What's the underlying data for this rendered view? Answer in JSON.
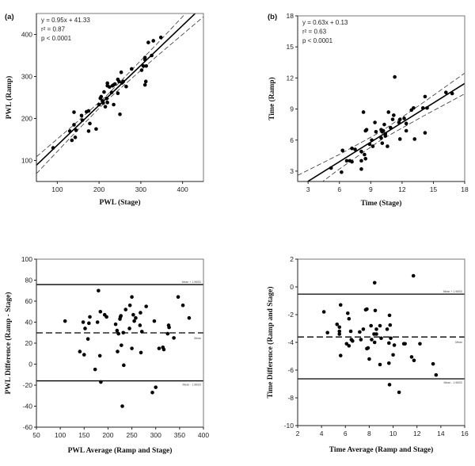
{
  "chart_data": [
    {
      "panel_label": "(a)",
      "type": "scatter",
      "xlabel": "PWL (Stage)",
      "ylabel": "PWL (Ramp)",
      "xlim": [
        50,
        450
      ],
      "ylim": [
        50,
        450
      ],
      "x_ticks": [
        100,
        200,
        300,
        400
      ],
      "y_ticks": [
        100,
        200,
        300,
        400
      ],
      "annotations": [
        "y = 0.95x + 41.33",
        "r² = 0.87",
        "p < 0.0001"
      ],
      "regression": {
        "slope": 0.95,
        "intercept": 41.33
      },
      "confidence_band": {
        "x": [
          50,
          135,
          220,
          335,
          450
        ],
        "upper": [
          108.8,
          180.9,
          256.3,
          373.8,
          495.3
        ],
        "lower": [
          68.8,
          158.3,
          244.3,
          345.4,
          442.3
        ]
      },
      "points": [
        [
          90,
          130
        ],
        [
          130,
          170
        ],
        [
          135,
          148
        ],
        [
          140,
          185
        ],
        [
          140,
          215
        ],
        [
          143,
          155
        ],
        [
          145,
          172
        ],
        [
          158,
          207
        ],
        [
          160,
          196
        ],
        [
          170,
          216
        ],
        [
          175,
          218
        ],
        [
          175,
          170
        ],
        [
          178,
          188
        ],
        [
          193,
          175
        ],
        [
          200,
          233
        ],
        [
          203,
          248
        ],
        [
          205,
          252
        ],
        [
          208,
          242
        ],
        [
          210,
          237
        ],
        [
          212,
          263
        ],
        [
          215,
          228
        ],
        [
          218,
          248
        ],
        [
          220,
          278
        ],
        [
          220,
          284
        ],
        [
          220,
          238
        ],
        [
          225,
          275
        ],
        [
          230,
          262
        ],
        [
          232,
          278
        ],
        [
          235,
          280
        ],
        [
          235,
          233
        ],
        [
          238,
          282
        ],
        [
          245,
          293
        ],
        [
          245,
          260
        ],
        [
          248,
          288
        ],
        [
          250,
          210
        ],
        [
          253,
          310
        ],
        [
          255,
          285
        ],
        [
          258,
          288
        ],
        [
          265,
          276
        ],
        [
          278,
          318
        ],
        [
          302,
          315
        ],
        [
          306,
          325
        ],
        [
          310,
          345
        ],
        [
          310,
          280
        ],
        [
          312,
          288
        ],
        [
          310,
          340
        ],
        [
          313,
          325
        ],
        [
          318,
          381
        ],
        [
          326,
          350
        ],
        [
          330,
          385
        ],
        [
          348,
          393
        ]
      ]
    },
    {
      "panel_label": "(b)",
      "type": "scatter",
      "xlabel": "Time (Stage)",
      "ylabel": "Time (Ramp)",
      "xlim": [
        2,
        18
      ],
      "ylim": [
        2,
        18
      ],
      "x_ticks": [
        3,
        6,
        9,
        12,
        15,
        18
      ],
      "y_ticks": [
        3,
        6,
        9,
        12,
        15,
        18
      ],
      "annotations": [
        "y = 0.63x + 0.13",
        "r² = 0.63",
        "p < 0.0001"
      ],
      "regression": {
        "slope": 0.63,
        "intercept": 0.13
      },
      "confidence_band": {
        "x": [
          2,
          6,
          10,
          14,
          18
        ],
        "upper": [
          2.59,
          4.61,
          6.83,
          9.6,
          12.47
        ],
        "lower": [
          0.19,
          3.21,
          6.03,
          8.3,
          10.47
        ]
      },
      "points": [
        [
          5.2,
          3.3
        ],
        [
          6.2,
          2.9
        ],
        [
          6.3,
          5.0
        ],
        [
          6.7,
          4.0
        ],
        [
          7.0,
          4.0
        ],
        [
          7.2,
          3.9
        ],
        [
          7.2,
          5.2
        ],
        [
          7.5,
          5.1
        ],
        [
          8.1,
          4.9
        ],
        [
          8.1,
          4.0
        ],
        [
          8.1,
          3.2
        ],
        [
          8.3,
          8.7
        ],
        [
          8.4,
          4.6
        ],
        [
          8.5,
          4.2
        ],
        [
          8.5,
          6.9
        ],
        [
          8.6,
          7.0
        ],
        [
          8.9,
          5.6
        ],
        [
          9.1,
          6.0
        ],
        [
          9.2,
          5.4
        ],
        [
          9.4,
          7.7
        ],
        [
          9.5,
          6.8
        ],
        [
          10.0,
          6.2
        ],
        [
          10.0,
          7.0
        ],
        [
          10.1,
          5.7
        ],
        [
          10.1,
          6.8
        ],
        [
          10.2,
          6.9
        ],
        [
          10.3,
          7.5
        ],
        [
          10.4,
          6.4
        ],
        [
          10.4,
          6.6
        ],
        [
          10.6,
          5.4
        ],
        [
          10.7,
          8.7
        ],
        [
          10.9,
          7.2
        ],
        [
          11.1,
          8.0
        ],
        [
          11.2,
          8.4
        ],
        [
          11.3,
          12.1
        ],
        [
          11.7,
          7.7
        ],
        [
          11.8,
          8.0
        ],
        [
          11.8,
          6.1
        ],
        [
          12.2,
          8.1
        ],
        [
          12.4,
          7.6
        ],
        [
          12.4,
          6.9
        ],
        [
          12.9,
          8.9
        ],
        [
          13.1,
          9.1
        ],
        [
          13.2,
          6.1
        ],
        [
          14.0,
          9.1
        ],
        [
          14.2,
          10.2
        ],
        [
          14.2,
          6.7
        ],
        [
          14.4,
          9.1
        ],
        [
          16.2,
          10.6
        ],
        [
          16.8,
          10.5
        ]
      ]
    },
    {
      "panel_label": "",
      "type": "scatter",
      "xlabel": "PWL Average (Ramp and Stage)",
      "ylabel": "PWL Difference (Ramp - Stage)",
      "xlim": [
        50,
        400
      ],
      "ylim": [
        -60,
        100
      ],
      "x_ticks": [
        50,
        100,
        150,
        200,
        250,
        300,
        350,
        400
      ],
      "y_ticks": [
        -60,
        -40,
        -20,
        0,
        20,
        40,
        60,
        80,
        100
      ],
      "reference_lines": [
        {
          "label": "Mean + 1.96SD",
          "y": 75.8,
          "style": "solid"
        },
        {
          "label": "Mean",
          "y": 29.8,
          "style": "dashed"
        },
        {
          "label": "Mean - 1.96SD",
          "y": -15.9,
          "style": "solid"
        }
      ],
      "points": [
        [
          110,
          41
        ],
        [
          141,
          12
        ],
        [
          148,
          40
        ],
        [
          150,
          9
        ],
        [
          152,
          34
        ],
        [
          158,
          24
        ],
        [
          160,
          39
        ],
        [
          162,
          45
        ],
        [
          173,
          -5
        ],
        [
          178,
          40
        ],
        [
          180,
          70
        ],
        [
          183,
          8
        ],
        [
          184,
          50
        ],
        [
          185,
          -17
        ],
        [
          193,
          47
        ],
        [
          197,
          45
        ],
        [
          216,
          38
        ],
        [
          219,
          32
        ],
        [
          220,
          12
        ],
        [
          222,
          29
        ],
        [
          225,
          43
        ],
        [
          226,
          45
        ],
        [
          227,
          46
        ],
        [
          228,
          18
        ],
        [
          230,
          -40
        ],
        [
          232,
          30
        ],
        [
          233,
          -1
        ],
        [
          237,
          52
        ],
        [
          245,
          34
        ],
        [
          246,
          56
        ],
        [
          250,
          64
        ],
        [
          250,
          15
        ],
        [
          253,
          47
        ],
        [
          255,
          41
        ],
        [
          258,
          44
        ],
        [
          267,
          37
        ],
        [
          268,
          49
        ],
        [
          269,
          11
        ],
        [
          271,
          31
        ],
        [
          280,
          55
        ],
        [
          297,
          41
        ],
        [
          293,
          -27
        ],
        [
          300,
          -22
        ],
        [
          307,
          15
        ],
        [
          315,
          16
        ],
        [
          317,
          14
        ],
        [
          325,
          29
        ],
        [
          327,
          37
        ],
        [
          328,
          35
        ],
        [
          338,
          25
        ],
        [
          347,
          64
        ],
        [
          357,
          56
        ],
        [
          370,
          44
        ]
      ]
    },
    {
      "panel_label": "",
      "type": "scatter",
      "xlabel": "Time Average (Ramp and Stage)",
      "ylabel": "Time Difference (Ramp and Stage)",
      "xlim": [
        2,
        16
      ],
      "ylim": [
        -10,
        2
      ],
      "x_ticks": [
        2,
        4,
        6,
        8,
        10,
        12,
        14,
        16
      ],
      "y_ticks": [
        -10,
        -8,
        -6,
        -4,
        -2,
        0,
        2
      ],
      "reference_lines": [
        {
          "label": "Mean + 1.96SD",
          "y": -0.52,
          "style": "solid"
        },
        {
          "label": "Mean",
          "y": -3.61,
          "style": "dashed"
        },
        {
          "label": "Mean - 1.96SD",
          "y": -6.63,
          "style": "solid"
        }
      ],
      "points": [
        [
          4.2,
          -1.8
        ],
        [
          4.5,
          -3.3
        ],
        [
          5.3,
          -2.7
        ],
        [
          5.5,
          -2.9
        ],
        [
          5.5,
          -3.2
        ],
        [
          5.5,
          -3.4
        ],
        [
          5.6,
          -1.3
        ],
        [
          5.6,
          -4.95
        ],
        [
          6.1,
          -4.1
        ],
        [
          6.2,
          -1.9
        ],
        [
          6.3,
          -4.25
        ],
        [
          6.3,
          -2.3
        ],
        [
          6.45,
          -3.2
        ],
        [
          6.5,
          -3.8
        ],
        [
          6.6,
          -3.9
        ],
        [
          7.2,
          -3.25
        ],
        [
          7.3,
          -3.8
        ],
        [
          7.5,
          -3.05
        ],
        [
          7.7,
          -1.65
        ],
        [
          7.8,
          -1.6
        ],
        [
          7.8,
          -4.45
        ],
        [
          7.9,
          -4.4
        ],
        [
          8.0,
          -5.2
        ],
        [
          8.15,
          -2.8
        ],
        [
          8.2,
          -3.8
        ],
        [
          8.4,
          -3.4
        ],
        [
          8.45,
          -4.0
        ],
        [
          8.45,
          0.3
        ],
        [
          8.5,
          -1.7
        ],
        [
          8.6,
          -3.05
        ],
        [
          8.6,
          -3.4
        ],
        [
          8.9,
          -2.8
        ],
        [
          8.9,
          -5.6
        ],
        [
          9.0,
          -3.7
        ],
        [
          9.5,
          -3.05
        ],
        [
          9.65,
          -4.05
        ],
        [
          9.65,
          -5.5
        ],
        [
          9.7,
          -2.05
        ],
        [
          9.7,
          -7.05
        ],
        [
          9.75,
          -2.75
        ],
        [
          9.8,
          -3.7
        ],
        [
          10.0,
          -4.9
        ],
        [
          10.1,
          -4.2
        ],
        [
          10.5,
          -7.6
        ],
        [
          10.9,
          -4.1
        ],
        [
          11.0,
          -4.1
        ],
        [
          11.55,
          -5.05
        ],
        [
          11.7,
          0.8
        ],
        [
          11.75,
          -5.3
        ],
        [
          12.25,
          -4.1
        ],
        [
          13.35,
          -5.55
        ],
        [
          13.6,
          -6.35
        ]
      ]
    }
  ]
}
